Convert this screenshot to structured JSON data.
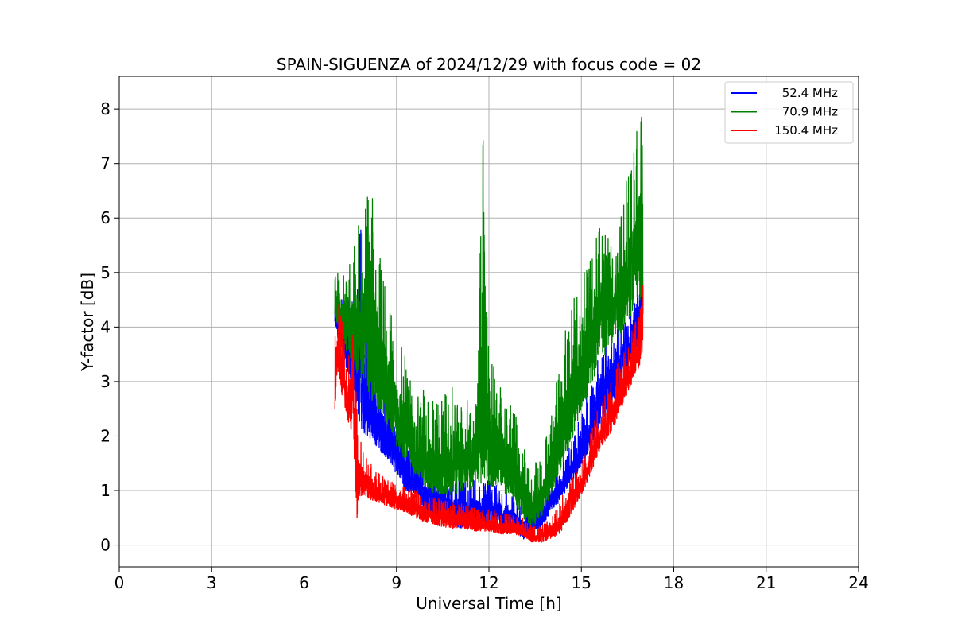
{
  "chart_data": {
    "type": "line",
    "title": "SPAIN-SIGUENZA of 2024/12/29 with focus code = 02",
    "xlabel": "Universal Time [h]",
    "ylabel": "Y-factor [dB]",
    "xlim": [
      0,
      24
    ],
    "ylim": [
      -0.4,
      8.6
    ],
    "xticks": [
      0,
      3,
      6,
      9,
      12,
      15,
      18,
      21,
      24
    ],
    "xtick_labels": [
      "0",
      "3",
      "6",
      "9",
      "12",
      "15",
      "18",
      "21",
      "24"
    ],
    "yticks": [
      0,
      1,
      2,
      3,
      4,
      5,
      6,
      7,
      8
    ],
    "ytick_labels": [
      "0",
      "1",
      "2",
      "3",
      "4",
      "5",
      "6",
      "7",
      "8"
    ],
    "grid": true,
    "legend_position": "top-right",
    "series": [
      {
        "name": "52.4 MHz",
        "color": "#0000ff",
        "x": [
          7.0,
          7.2,
          7.5,
          7.8,
          8.0,
          8.2,
          8.5,
          8.8,
          9.0,
          9.3,
          9.6,
          10.0,
          10.4,
          10.8,
          11.2,
          11.6,
          12.0,
          12.4,
          12.8,
          13.1,
          13.4,
          13.7,
          14.0,
          14.3,
          14.6,
          15.0,
          15.3,
          15.6,
          16.0,
          16.3,
          16.6,
          16.9,
          17.0
        ],
        "y_low": [
          4.0,
          3.5,
          3.0,
          2.2,
          2.0,
          1.9,
          1.7,
          1.5,
          1.3,
          1.0,
          0.9,
          0.6,
          0.45,
          0.35,
          0.3,
          0.35,
          0.4,
          0.35,
          0.3,
          0.1,
          0.2,
          0.3,
          0.6,
          0.8,
          1.1,
          1.4,
          1.8,
          2.2,
          2.6,
          2.9,
          3.3,
          3.8,
          4.0
        ],
        "y_high": [
          4.6,
          4.5,
          4.5,
          6.3,
          4.5,
          3.6,
          3.2,
          2.8,
          2.6,
          2.0,
          1.8,
          1.5,
          1.4,
          1.3,
          1.2,
          1.2,
          1.2,
          1.1,
          0.9,
          0.7,
          0.8,
          1.0,
          1.2,
          1.5,
          1.8,
          2.4,
          3.0,
          3.6,
          4.0,
          4.2,
          4.4,
          5.0,
          5.9
        ]
      },
      {
        "name": "70.9 MHz",
        "color": "#008000",
        "x": [
          7.0,
          7.2,
          7.5,
          7.8,
          8.0,
          8.2,
          8.5,
          8.8,
          9.0,
          9.3,
          9.6,
          10.0,
          10.4,
          10.8,
          11.2,
          11.6,
          11.8,
          12.0,
          12.4,
          12.8,
          13.1,
          13.4,
          13.7,
          14.0,
          14.3,
          14.6,
          15.0,
          15.3,
          15.6,
          16.0,
          16.3,
          16.6,
          16.9,
          17.0
        ],
        "y_low": [
          4.2,
          3.8,
          3.4,
          3.0,
          2.8,
          2.6,
          2.4,
          2.1,
          1.8,
          1.5,
          1.3,
          1.0,
          0.9,
          0.9,
          1.0,
          1.0,
          1.1,
          1.1,
          1.0,
          0.8,
          0.5,
          0.3,
          0.5,
          0.9,
          1.3,
          1.8,
          2.4,
          2.9,
          3.3,
          3.6,
          3.9,
          4.2,
          4.5,
          4.6
        ],
        "y_high": [
          5.0,
          5.1,
          5.2,
          6.0,
          6.4,
          6.5,
          5.2,
          4.3,
          3.8,
          3.5,
          3.1,
          2.8,
          2.6,
          3.0,
          2.7,
          2.6,
          7.7,
          3.6,
          2.9,
          2.5,
          1.9,
          1.5,
          1.6,
          2.3,
          3.4,
          4.4,
          5.0,
          5.5,
          6.2,
          5.8,
          6.5,
          7.0,
          8.2,
          7.6
        ]
      },
      {
        "name": "150.4 MHz",
        "color": "#ff0000",
        "x": [
          7.0,
          7.1,
          7.2,
          7.4,
          7.6,
          7.7,
          7.8,
          8.0,
          8.2,
          8.5,
          8.8,
          9.0,
          9.3,
          9.6,
          10.0,
          10.4,
          10.8,
          11.2,
          11.6,
          12.0,
          12.4,
          12.8,
          13.1,
          13.4,
          13.7,
          14.0,
          14.3,
          14.6,
          15.0,
          15.3,
          15.6,
          16.0,
          16.3,
          16.6,
          16.9,
          17.0
        ],
        "y_low": [
          2.5,
          3.2,
          2.8,
          2.3,
          2.0,
          0.4,
          0.9,
          0.9,
          0.8,
          0.75,
          0.7,
          0.65,
          0.6,
          0.5,
          0.4,
          0.35,
          0.3,
          0.3,
          0.25,
          0.25,
          0.2,
          0.2,
          0.15,
          0.05,
          0.05,
          0.1,
          0.2,
          0.5,
          0.9,
          1.3,
          1.7,
          2.1,
          2.5,
          2.9,
          3.3,
          3.6
        ],
        "y_high": [
          4.2,
          4.7,
          4.3,
          3.6,
          4.3,
          2.6,
          2.0,
          1.7,
          1.5,
          1.3,
          1.2,
          1.15,
          1.1,
          1.0,
          0.9,
          0.85,
          0.8,
          0.75,
          0.7,
          0.65,
          0.6,
          0.55,
          0.5,
          0.35,
          0.35,
          0.5,
          0.8,
          1.2,
          1.6,
          2.1,
          2.6,
          3.1,
          3.5,
          3.9,
          4.3,
          4.9
        ]
      }
    ]
  }
}
